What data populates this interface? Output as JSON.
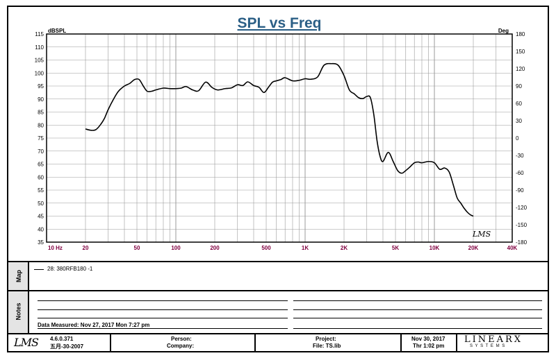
{
  "chart_data": {
    "type": "line",
    "title": "SPL vs Freq",
    "y_left_label": "dBSPL",
    "y_right_label": "Deg",
    "x_scale": "log",
    "xlim": [
      10,
      40000
    ],
    "ylim": [
      35,
      115
    ],
    "y_right_lim": [
      -180,
      180
    ],
    "x_ticks": [
      10,
      20,
      50,
      100,
      200,
      500,
      1000,
      2000,
      5000,
      10000,
      20000,
      40000
    ],
    "x_tick_labels": [
      "10  Hz",
      "20",
      "50",
      "100",
      "200",
      "500",
      "1K",
      "2K",
      "5K",
      "10K",
      "20K",
      "40K"
    ],
    "y_ticks": [
      35,
      40,
      45,
      50,
      55,
      60,
      65,
      70,
      75,
      80,
      85,
      90,
      95,
      100,
      105,
      110,
      115
    ],
    "y_right_ticks": [
      180,
      150,
      120,
      90,
      60,
      30,
      0,
      -30,
      -60,
      -90,
      -120,
      -150,
      -180
    ],
    "grid": true,
    "series": [
      {
        "name": "28: 380RFB180 -1",
        "x": [
          20,
          22,
          24,
          26,
          28,
          30,
          33,
          36,
          40,
          44,
          48,
          52,
          56,
          60,
          65,
          70,
          80,
          90,
          100,
          110,
          120,
          135,
          150,
          170,
          190,
          210,
          240,
          270,
          300,
          330,
          360,
          400,
          440,
          480,
          520,
          560,
          600,
          650,
          700,
          800,
          900,
          1000,
          1100,
          1250,
          1400,
          1600,
          1800,
          2000,
          2200,
          2400,
          2600,
          2800,
          3000,
          3200,
          3400,
          3600,
          3800,
          4000,
          4400,
          4800,
          5200,
          5600,
          6000,
          6500,
          7000,
          7500,
          8000,
          9000,
          10000,
          11000,
          12000,
          13000,
          14000,
          15000,
          16000,
          17000,
          18000,
          19000,
          20000
        ],
        "y": [
          78.5,
          78,
          78.2,
          80,
          82.5,
          86,
          90,
          93,
          95,
          96,
          97.5,
          97.5,
          95,
          93,
          93,
          93.5,
          94.2,
          94,
          94,
          94.2,
          94.8,
          93.5,
          93.2,
          96.5,
          94.5,
          93.5,
          94,
          94.3,
          95.5,
          95.2,
          96.6,
          95.2,
          94.5,
          92.5,
          94.5,
          96.5,
          97,
          97.5,
          98.2,
          97,
          97.2,
          97.8,
          97.6,
          98.5,
          103,
          103.6,
          103,
          99,
          93.5,
          92,
          90.5,
          90.2,
          91,
          90.5,
          84,
          74,
          68,
          66,
          69.5,
          66,
          62.5,
          61.5,
          62.5,
          64,
          65.5,
          65.8,
          65.5,
          66,
          65.5,
          63,
          63.5,
          62,
          57,
          52,
          50,
          48,
          46.5,
          45.5,
          45
        ]
      }
    ]
  },
  "map_panel": {
    "tab_label": "Map",
    "legend_entry": "28: 380RFB180 -1"
  },
  "notes_panel": {
    "tab_label": "Notes",
    "data_measured": "Data Measured: Nov 27, 2017  Mon  7:27 pm"
  },
  "footer": {
    "lms_logo": "LMS",
    "version": "4.6.0.371",
    "build_date": "五月-30-2007",
    "person_label": "Person:",
    "company_label": "Company:",
    "project_label": "Project:",
    "file_label": "File: TS.lib",
    "date": "Nov 30, 2017",
    "time": "Thr  1:02 pm",
    "brand": "LINEARX",
    "brand_sub": "S Y S T E M S"
  },
  "watermark_logo": "LMS",
  "colors": {
    "title": "#2b5f86",
    "x_tick_label": "#800040",
    "y_tick_label": "#000000",
    "plot_bg": "#ffffff",
    "grid": "#9a9a9a",
    "curve": "#000000",
    "panel_tab": "#e4e4e4"
  }
}
